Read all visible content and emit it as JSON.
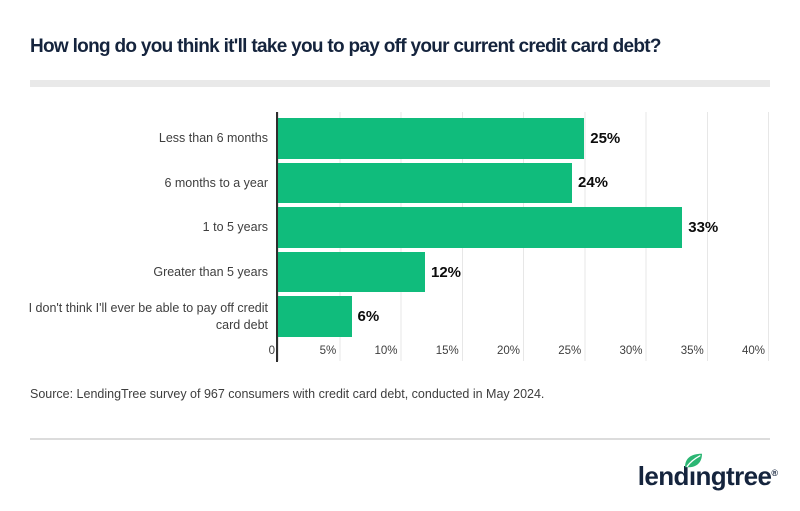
{
  "title": "How long do you think it'll take you to pay off your current credit card debt?",
  "chart_data": {
    "type": "bar",
    "orientation": "horizontal",
    "title": "How long do you think it'll take you to pay off your current credit card debt?",
    "categories": [
      "Less than 6 months",
      "6 months to a year",
      "1 to 5 years",
      "Greater than 5 years",
      "I don't think I'll ever be able to pay off credit card debt"
    ],
    "values": [
      25,
      24,
      33,
      12,
      6
    ],
    "value_labels": [
      "25%",
      "24%",
      "33%",
      "12%",
      "6%"
    ],
    "xlim": [
      0,
      40
    ],
    "x_tick_values": [
      0,
      5,
      10,
      15,
      20,
      25,
      30,
      35,
      40
    ],
    "x_ticks": [
      "0",
      "5%",
      "10%",
      "15%",
      "20%",
      "25%",
      "30%",
      "35%",
      "40%"
    ],
    "grid": true,
    "legend": false,
    "bar_color": "#10bc7c"
  },
  "source_note": "Source: LendingTree survey of 967 consumers with credit card debt, conducted in May 2024.",
  "footer": {
    "logo_text": "lendingtree",
    "logo_parts": {
      "before_i": "lend",
      "i_char": "ı",
      "after_i": "ngtree",
      "registered": "®"
    }
  },
  "colors": {
    "bar_green": "#10bc7c",
    "leaf_green": "#2bb673",
    "navy": "#15243d",
    "gridline": "#e7e7e7",
    "axis_line": "#2e2e2e",
    "title_divider": "#e9e9e9",
    "text_gray": "#3e3e3e"
  }
}
